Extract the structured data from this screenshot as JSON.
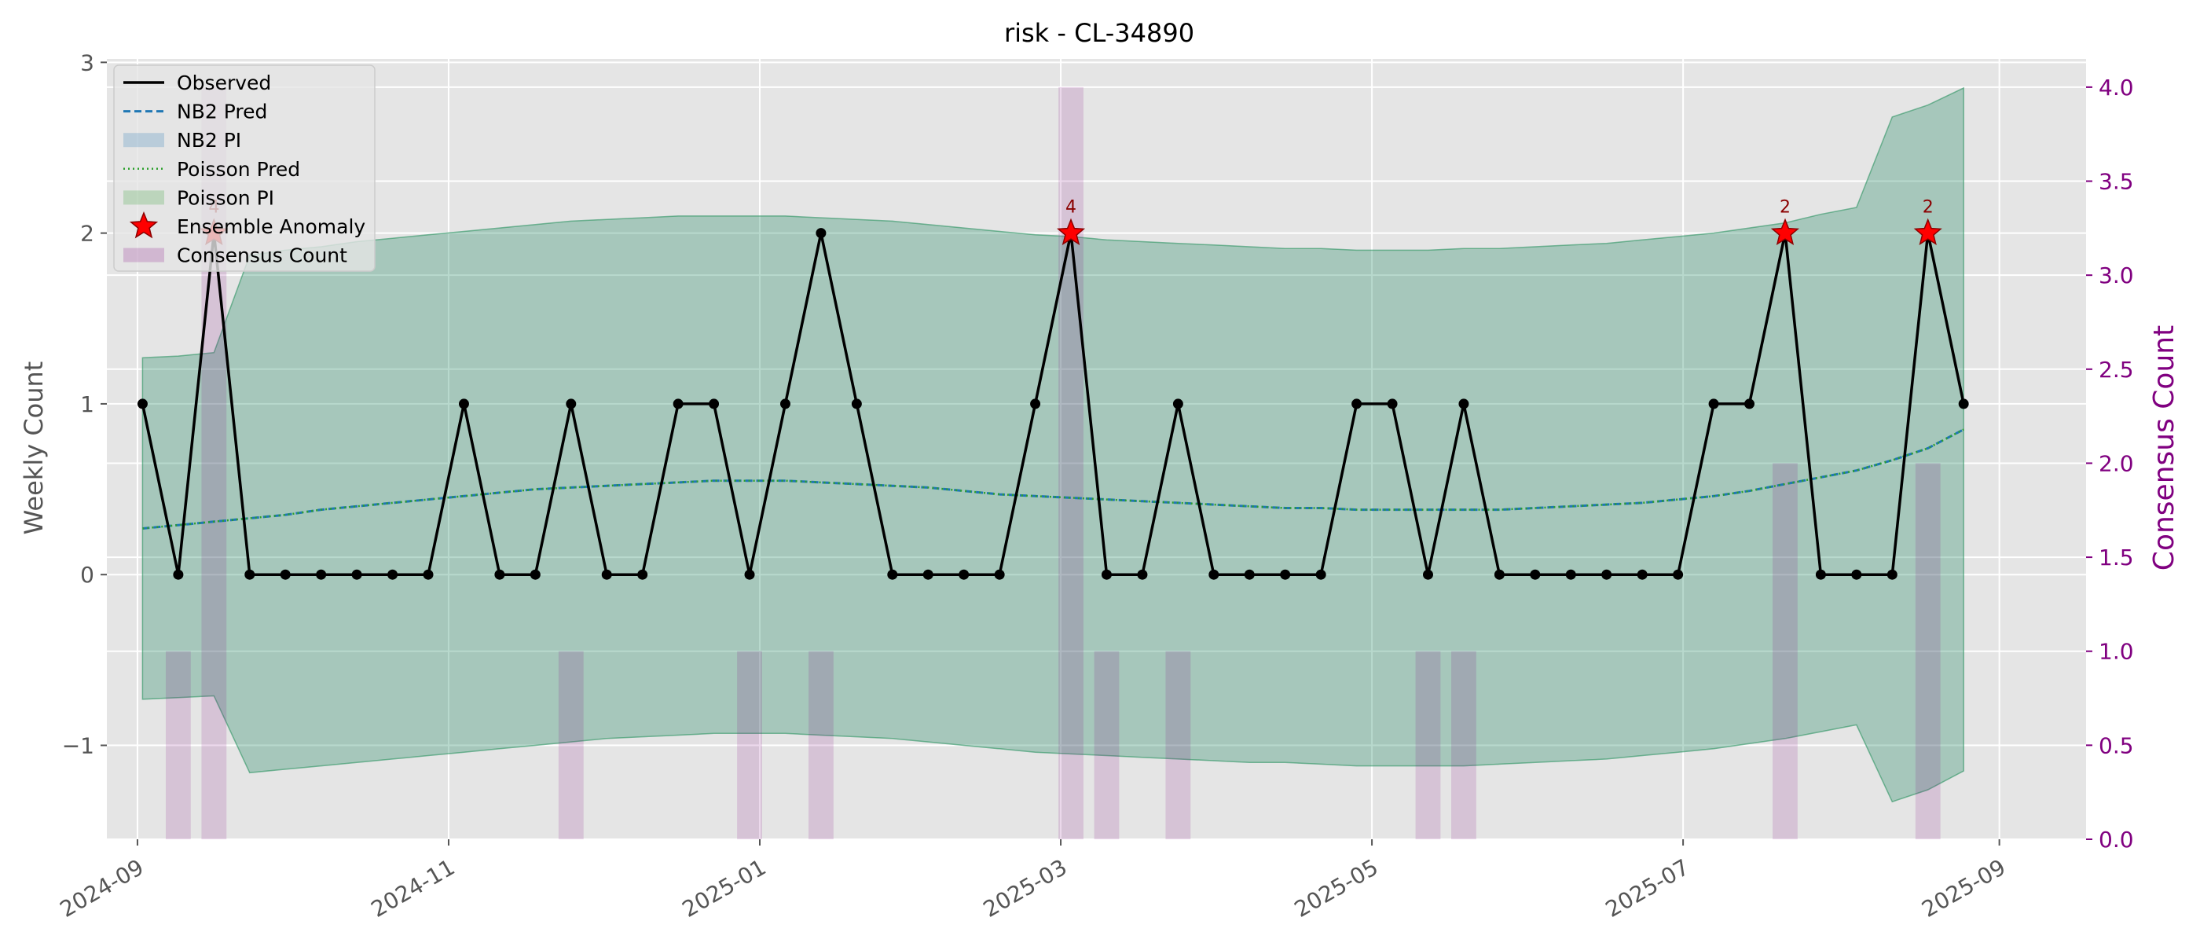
{
  "chart_data": {
    "type": "line",
    "title": "risk - CL-34890",
    "ylabel": "Weekly Count",
    "y2label": "Consensus Count",
    "xlabel": "",
    "ylim": [
      -1.55,
      3.02
    ],
    "y2lim": [
      0.0,
      4.15
    ],
    "xlim": [
      "2024-08-26",
      "2025-09-18"
    ],
    "x_ticks": [
      "2024-09",
      "2024-11",
      "2025-01",
      "2025-03",
      "2025-05",
      "2025-07",
      "2025-09"
    ],
    "y_ticks": [
      -1,
      0,
      1,
      2,
      3
    ],
    "y2_ticks": [
      "0.0",
      "0.5",
      "1.0",
      "1.5",
      "2.0",
      "2.5",
      "3.0",
      "3.5",
      "4.0"
    ],
    "legend_position": "upper-left",
    "grid": true,
    "legend": [
      "Observed",
      "NB2 Pred",
      "NB2 PI",
      "Poisson Pred",
      "Poisson PI",
      "Ensemble Anomaly",
      "Consensus Count"
    ],
    "x": [
      "2024-09-02",
      "2024-09-09",
      "2024-09-16",
      "2024-09-23",
      "2024-09-30",
      "2024-10-07",
      "2024-10-14",
      "2024-10-21",
      "2024-10-28",
      "2024-11-04",
      "2024-11-11",
      "2024-11-18",
      "2024-11-25",
      "2024-12-02",
      "2024-12-09",
      "2024-12-16",
      "2024-12-23",
      "2024-12-30",
      "2025-01-06",
      "2025-01-13",
      "2025-01-20",
      "2025-01-27",
      "2025-02-03",
      "2025-02-10",
      "2025-02-17",
      "2025-02-24",
      "2025-03-03",
      "2025-03-10",
      "2025-03-17",
      "2025-03-24",
      "2025-03-31",
      "2025-04-07",
      "2025-04-14",
      "2025-04-21",
      "2025-04-28",
      "2025-05-05",
      "2025-05-12",
      "2025-05-19",
      "2025-05-26",
      "2025-06-02",
      "2025-06-09",
      "2025-06-16",
      "2025-06-23",
      "2025-06-30",
      "2025-07-07",
      "2025-07-14",
      "2025-07-21",
      "2025-07-28",
      "2025-08-04",
      "2025-08-11",
      "2025-08-18",
      "2025-08-25"
    ],
    "series": [
      {
        "name": "Observed",
        "color": "#000000",
        "values": [
          1,
          0,
          2,
          0,
          0,
          0,
          0,
          0,
          0,
          1,
          0,
          0,
          1,
          0,
          0,
          1,
          1,
          0,
          1,
          2,
          1,
          0,
          0,
          0,
          0,
          1,
          2,
          0,
          0,
          1,
          0,
          0,
          0,
          0,
          1,
          1,
          0,
          1,
          0,
          0,
          0,
          0,
          0,
          0,
          1,
          1,
          2,
          0,
          0,
          0,
          2,
          1
        ]
      },
      {
        "name": "NB2 Pred",
        "color": "#1f77b4",
        "values": [
          0.27,
          0.29,
          0.31,
          0.33,
          0.35,
          0.38,
          0.4,
          0.42,
          0.44,
          0.46,
          0.48,
          0.5,
          0.51,
          0.52,
          0.53,
          0.54,
          0.55,
          0.55,
          0.55,
          0.54,
          0.53,
          0.52,
          0.51,
          0.49,
          0.47,
          0.46,
          0.45,
          0.44,
          0.43,
          0.42,
          0.41,
          0.4,
          0.39,
          0.39,
          0.38,
          0.38,
          0.38,
          0.38,
          0.38,
          0.39,
          0.4,
          0.41,
          0.42,
          0.44,
          0.46,
          0.49,
          0.53,
          0.57,
          0.61,
          0.67,
          0.74,
          0.85
        ]
      },
      {
        "name": "Poisson Pred",
        "color": "#2ca02c",
        "values": [
          0.27,
          0.29,
          0.31,
          0.33,
          0.35,
          0.38,
          0.4,
          0.42,
          0.44,
          0.46,
          0.48,
          0.5,
          0.51,
          0.52,
          0.53,
          0.54,
          0.55,
          0.55,
          0.55,
          0.54,
          0.53,
          0.52,
          0.51,
          0.49,
          0.47,
          0.46,
          0.45,
          0.44,
          0.43,
          0.42,
          0.41,
          0.4,
          0.39,
          0.39,
          0.38,
          0.38,
          0.38,
          0.38,
          0.38,
          0.39,
          0.4,
          0.41,
          0.42,
          0.44,
          0.46,
          0.49,
          0.53,
          0.57,
          0.61,
          0.67,
          0.74,
          0.85
        ]
      }
    ],
    "nb2_pi": {
      "name": "NB2 PI",
      "color": "#1f77b4",
      "lower": [
        -0.73,
        -0.72,
        -0.71,
        -1.16,
        -1.14,
        -1.12,
        -1.1,
        -1.08,
        -1.06,
        -1.04,
        -1.02,
        -1.0,
        -0.98,
        -0.96,
        -0.95,
        -0.94,
        -0.93,
        -0.93,
        -0.93,
        -0.94,
        -0.95,
        -0.96,
        -0.98,
        -1.0,
        -1.02,
        -1.04,
        -1.05,
        -1.06,
        -1.07,
        -1.08,
        -1.09,
        -1.1,
        -1.1,
        -1.11,
        -1.12,
        -1.12,
        -1.12,
        -1.12,
        -1.11,
        -1.1,
        -1.09,
        -1.08,
        -1.06,
        -1.04,
        -1.02,
        -0.99,
        -0.96,
        -0.92,
        -0.88,
        -1.33,
        -1.26,
        -1.15
      ],
      "upper": [
        1.27,
        1.28,
        1.3,
        1.87,
        1.9,
        1.92,
        1.95,
        1.97,
        1.99,
        2.01,
        2.03,
        2.05,
        2.07,
        2.08,
        2.09,
        2.1,
        2.1,
        2.1,
        2.1,
        2.09,
        2.08,
        2.07,
        2.05,
        2.03,
        2.01,
        1.99,
        1.98,
        1.96,
        1.95,
        1.94,
        1.93,
        1.92,
        1.91,
        1.91,
        1.9,
        1.9,
        1.9,
        1.91,
        1.91,
        1.92,
        1.93,
        1.94,
        1.96,
        1.98,
        2.0,
        2.03,
        2.06,
        2.11,
        2.15,
        2.68,
        2.75,
        2.85
      ]
    },
    "poisson_pi": {
      "name": "Poisson PI",
      "color": "#2ca02c",
      "lower": [
        -0.73,
        -0.72,
        -0.71,
        -1.16,
        -1.14,
        -1.12,
        -1.1,
        -1.08,
        -1.06,
        -1.04,
        -1.02,
        -1.0,
        -0.98,
        -0.96,
        -0.95,
        -0.94,
        -0.93,
        -0.93,
        -0.93,
        -0.94,
        -0.95,
        -0.96,
        -0.98,
        -1.0,
        -1.02,
        -1.04,
        -1.05,
        -1.06,
        -1.07,
        -1.08,
        -1.09,
        -1.1,
        -1.1,
        -1.11,
        -1.12,
        -1.12,
        -1.12,
        -1.12,
        -1.11,
        -1.1,
        -1.09,
        -1.08,
        -1.06,
        -1.04,
        -1.02,
        -0.99,
        -0.96,
        -0.92,
        -0.88,
        -1.33,
        -1.26,
        -1.15
      ],
      "upper": [
        1.27,
        1.28,
        1.3,
        1.87,
        1.9,
        1.92,
        1.95,
        1.97,
        1.99,
        2.01,
        2.03,
        2.05,
        2.07,
        2.08,
        2.09,
        2.1,
        2.1,
        2.1,
        2.1,
        2.09,
        2.08,
        2.07,
        2.05,
        2.03,
        2.01,
        1.99,
        1.98,
        1.96,
        1.95,
        1.94,
        1.93,
        1.92,
        1.91,
        1.91,
        1.9,
        1.9,
        1.9,
        1.91,
        1.91,
        1.92,
        1.93,
        1.94,
        1.96,
        1.98,
        2.0,
        2.03,
        2.06,
        2.11,
        2.15,
        2.68,
        2.75,
        2.85
      ]
    },
    "consensus": {
      "name": "Consensus Count",
      "color": "#800080",
      "bars": [
        {
          "x": "2024-09-09",
          "value": 1
        },
        {
          "x": "2024-09-16",
          "value": 4
        },
        {
          "x": "2024-11-25",
          "value": 1
        },
        {
          "x": "2024-12-30",
          "value": 1
        },
        {
          "x": "2025-01-13",
          "value": 1
        },
        {
          "x": "2025-03-03",
          "value": 4
        },
        {
          "x": "2025-03-10",
          "value": 1
        },
        {
          "x": "2025-03-24",
          "value": 1
        },
        {
          "x": "2025-05-12",
          "value": 1
        },
        {
          "x": "2025-05-19",
          "value": 1
        },
        {
          "x": "2025-07-21",
          "value": 2
        },
        {
          "x": "2025-08-18",
          "value": 2
        }
      ]
    },
    "anomalies": {
      "name": "Ensemble Anomaly",
      "color": "#ff0000",
      "points": [
        {
          "x": "2024-09-16",
          "y": 2,
          "label": "4"
        },
        {
          "x": "2025-03-03",
          "y": 2,
          "label": "4"
        },
        {
          "x": "2025-07-21",
          "y": 2,
          "label": "2"
        },
        {
          "x": "2025-08-18",
          "y": 2,
          "label": "2"
        }
      ]
    }
  }
}
